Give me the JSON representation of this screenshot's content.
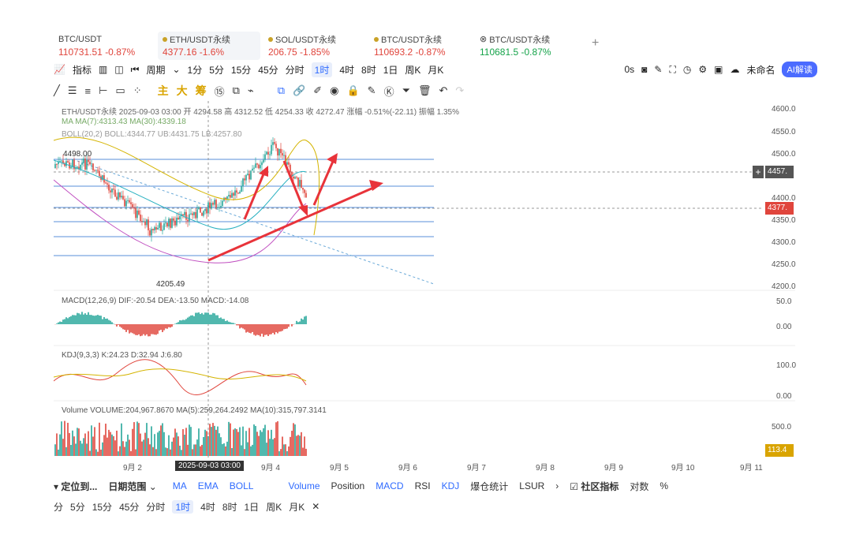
{
  "tabs": [
    {
      "symbol": "BTC/USDT",
      "price": "110731.51",
      "change": "-0.87%",
      "color": "red"
    },
    {
      "symbol": "ETH/USDT永续",
      "price": "4377.16",
      "change": "-1.6%",
      "color": "red"
    },
    {
      "symbol": "SOL/USDT永续",
      "price": "206.75",
      "change": "-1.85%",
      "color": "red"
    },
    {
      "symbol": "BTC/USDT永续",
      "price": "110693.2",
      "change": "-0.87%",
      "color": "red"
    },
    {
      "symbol": "BTC/USDT永续",
      "price": "110681.5",
      "change": "-0.87%",
      "color": "green"
    }
  ],
  "toolbar": {
    "indicator": "指标",
    "period": "周期",
    "tf": [
      "1分",
      "5分",
      "15分",
      "45分",
      "分时",
      "1时",
      "4时",
      "8时",
      "1日",
      "周K",
      "月K"
    ],
    "active_tf": "1时",
    "countdown": "0s",
    "layout_name": "未命名",
    "ai_label": "AI解读"
  },
  "drawbar": {
    "main": "主",
    "big": "大",
    "chip": "筹"
  },
  "info": {
    "title": "ETH/USDT永续 2025-09-03 03:00 开 4294.58 高 4312.52 低 4254.33 收 4272.47 涨幅 -0.51%(-22.11) 振幅 1.35%",
    "ma": "MA  MA(7):4313.43  MA(30):4339.18",
    "boll": "BOLL(20,2)  BOLL:4344.77  UB:4431.75  LB:4257.80",
    "macd": "MACD(12,26,9)  DIF:-20.54  DEA:-13.50  MACD:-14.08",
    "kdj": "KDJ(9,3,3)  K:24.23  D:32.94  J:6.80",
    "vol": "Volume  VOLUME:204,967.8670  MA(5):259,264.2492  MA(10):315,797.3141",
    "high_mark": "4498.00",
    "low_mark": "4205.49"
  },
  "price_axis": [
    "4600.0",
    "4550.0",
    "4500.0",
    "4450.0",
    "4400.0",
    "4350.0",
    "4300.0",
    "4250.0",
    "4200.0"
  ],
  "price_tags": {
    "cross": "4457.",
    "last": "4377."
  },
  "macd_axis": [
    "50.0",
    "0.00"
  ],
  "kdj_axis": [
    "100.0",
    "0.00"
  ],
  "vol_axis": [
    "500.0"
  ],
  "vol_tag": "113.4",
  "x_dates": [
    "9月 2",
    "9月 4",
    "9月 5",
    "9月 6",
    "9月 7",
    "9月 8",
    "9月 9",
    "9月 10",
    "9月 11"
  ],
  "cross_date": "2025-09-03 03:00",
  "bottom": {
    "locate": "定位到...",
    "range": "日期范围",
    "items": [
      "MA",
      "EMA",
      "BOLL",
      "Volume",
      "Position",
      "MACD",
      "RSI",
      "KDJ",
      "爆仓统计",
      "LSUR"
    ],
    "community": "社区指标",
    "compare": "对数",
    "pct": "%"
  },
  "tfbar": [
    "分",
    "5分",
    "15分",
    "45分",
    "分时",
    "1时",
    "4时",
    "8时",
    "1日",
    "周K",
    "月K"
  ]
}
